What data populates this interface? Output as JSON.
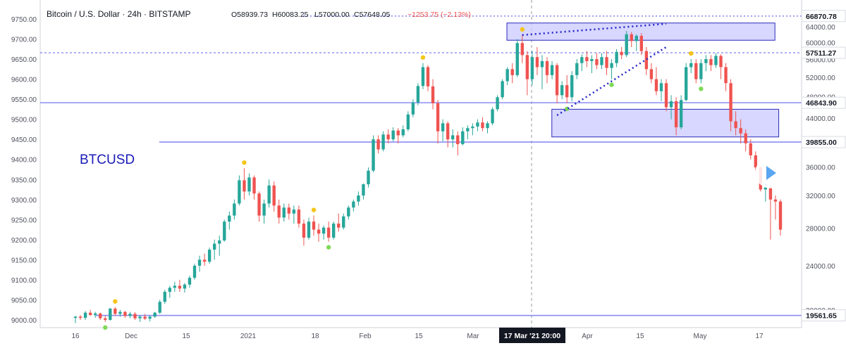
{
  "header": {
    "title": "Bitcoin / U.S. Dollar · 24h · BITSTAMP",
    "open": "O58939.73",
    "high": "H60083.25",
    "low": "L57000.00",
    "close": "C57648.05",
    "change": "−1253.75 (−2.13%)",
    "change_color": "#ef5350"
  },
  "symbol_label": "BTCUSD",
  "crosshair_label": "17 Mar '21  20:00",
  "colors": {
    "up": "#26a69a",
    "down": "#ef5350",
    "accent_line": "#8c8cf2",
    "zone_fill": "#c9c9ff",
    "zone_stroke": "#2a2aba",
    "dotted_trend": "#2323c8",
    "dot_high": "#f5c518",
    "dot_low": "#7ed957",
    "play_button": "#5aa6f0"
  },
  "chart_data": {
    "type": "candlestick",
    "left_axis": {
      "ticks": [
        "9750.00",
        "9700.00",
        "9650.00",
        "9600.00",
        "9550.00",
        "9500.00",
        "9450.00",
        "9400.00",
        "9350.00",
        "9300.00",
        "9250.00",
        "9200.00",
        "9150.00",
        "9100.00",
        "9050.00",
        "9000.00"
      ],
      "range": [
        8990,
        9765
      ]
    },
    "right_axis": {
      "ticks": [
        "64000.00",
        "60000.00",
        "56000.00",
        "52000.00",
        "48000.00",
        "44000.00",
        "40000.00",
        "36000.00",
        "32000.00",
        "28000.00",
        "24000.00",
        "20000.00"
      ],
      "scale": "log"
    },
    "x_ticks": [
      "16",
      "Dec",
      "15",
      "2021",
      "18",
      "Feb",
      "15",
      "Mar",
      "Apr",
      "15",
      "May",
      "17"
    ],
    "price_tags": [
      {
        "value": "66870.78",
        "style": "dotted"
      },
      {
        "value": "57511.27",
        "style": "dashed"
      },
      {
        "value": "46843.90",
        "style": "solid"
      },
      {
        "value": "39855.00",
        "style": "solid"
      },
      {
        "value": "19561.65",
        "style": "solid"
      }
    ],
    "candles_left_scale": [
      [
        9005,
        9010,
        8992,
        9008
      ],
      [
        9008,
        9012,
        9000,
        9005
      ],
      [
        9005,
        9022,
        9000,
        9018
      ],
      [
        9018,
        9025,
        9010,
        9012
      ],
      [
        9012,
        9020,
        9005,
        9016
      ],
      [
        9016,
        9018,
        9000,
        9004
      ],
      [
        9004,
        9010,
        8995,
        9000
      ],
      [
        9000,
        9030,
        8998,
        9028
      ],
      [
        9028,
        9032,
        9010,
        9015
      ],
      [
        9015,
        9025,
        9008,
        9020
      ],
      [
        9020,
        9022,
        9005,
        9010
      ],
      [
        9010,
        9020,
        9004,
        9015
      ],
      [
        9015,
        9019,
        9000,
        9004
      ],
      [
        9004,
        9012,
        8995,
        9008
      ],
      [
        9008,
        9015,
        9000,
        9003
      ],
      [
        9003,
        9010,
        8996,
        9008
      ],
      [
        9008,
        9020,
        9005,
        9018
      ],
      [
        9018,
        9050,
        9015,
        9045
      ],
      [
        9045,
        9075,
        9040,
        9070
      ],
      [
        9070,
        9085,
        9055,
        9080
      ],
      [
        9080,
        9095,
        9070,
        9085
      ],
      [
        9085,
        9100,
        9070,
        9078
      ],
      [
        9078,
        9092,
        9068,
        9088
      ],
      [
        9088,
        9110,
        9080,
        9105
      ],
      [
        9105,
        9140,
        9100,
        9135
      ],
      [
        9135,
        9160,
        9120,
        9150
      ],
      [
        9150,
        9165,
        9135,
        9145
      ],
      [
        9145,
        9180,
        9140,
        9175
      ],
      [
        9175,
        9200,
        9150,
        9190
      ],
      [
        9190,
        9210,
        9160,
        9198
      ],
      [
        9198,
        9250,
        9195,
        9245
      ],
      [
        9245,
        9270,
        9225,
        9260
      ],
      [
        9260,
        9300,
        9250,
        9290
      ],
      [
        9290,
        9360,
        9285,
        9348
      ],
      [
        9348,
        9378,
        9300,
        9320
      ],
      [
        9320,
        9365,
        9310,
        9355
      ],
      [
        9355,
        9360,
        9300,
        9315
      ],
      [
        9315,
        9320,
        9245,
        9260
      ],
      [
        9260,
        9300,
        9240,
        9290
      ],
      [
        9290,
        9350,
        9280,
        9335
      ],
      [
        9335,
        9345,
        9270,
        9285
      ],
      [
        9285,
        9300,
        9240,
        9255
      ],
      [
        9255,
        9290,
        9245,
        9280
      ],
      [
        9280,
        9290,
        9250,
        9265
      ],
      [
        9265,
        9285,
        9240,
        9275
      ],
      [
        9275,
        9285,
        9230,
        9240
      ],
      [
        9240,
        9250,
        9185,
        9205
      ],
      [
        9205,
        9255,
        9200,
        9245
      ],
      [
        9245,
        9260,
        9210,
        9225
      ],
      [
        9225,
        9240,
        9195,
        9215
      ],
      [
        9215,
        9235,
        9200,
        9230
      ],
      [
        9230,
        9245,
        9195,
        9205
      ],
      [
        9205,
        9245,
        9200,
        9240
      ],
      [
        9240,
        9265,
        9220,
        9230
      ],
      [
        9230,
        9265,
        9225,
        9258
      ],
      [
        9258,
        9285,
        9250,
        9280
      ],
      [
        9280,
        9300,
        9270,
        9295
      ],
      [
        9295,
        9320,
        9285,
        9310
      ],
      [
        9310,
        9340,
        9300,
        9338
      ],
      [
        9338,
        9380,
        9330,
        9372
      ],
      [
        9372,
        9460,
        9368,
        9450
      ],
      [
        9450,
        9460,
        9415,
        9425
      ],
      [
        9425,
        9470,
        9420,
        9462
      ],
      [
        9462,
        9475,
        9440,
        9450
      ],
      [
        9450,
        9480,
        9445,
        9472
      ],
      [
        9472,
        9478,
        9440,
        9460
      ],
      [
        9460,
        9485,
        9455,
        9475
      ],
      [
        9475,
        9520,
        9470,
        9512
      ],
      [
        9512,
        9550,
        9505,
        9542
      ],
      [
        9542,
        9590,
        9535,
        9583
      ],
      [
        9583,
        9640,
        9575,
        9630
      ],
      [
        9630,
        9635,
        9570,
        9582
      ],
      [
        9582,
        9600,
        9525,
        9540
      ],
      [
        9540,
        9548,
        9440,
        9470
      ],
      [
        9470,
        9500,
        9445,
        9490
      ],
      [
        9490,
        9495,
        9430,
        9450
      ],
      [
        9450,
        9475,
        9430,
        9460
      ],
      [
        9460,
        9470,
        9410,
        9438
      ],
      [
        9438,
        9480,
        9435,
        9470
      ],
      [
        9470,
        9485,
        9450,
        9478
      ],
      [
        9478,
        9490,
        9460,
        9482
      ],
      [
        9482,
        9500,
        9470,
        9492
      ],
      [
        9492,
        9505,
        9470,
        9478
      ],
      [
        9478,
        9495,
        9465,
        9490
      ],
      [
        9490,
        9530,
        9485,
        9525
      ],
      [
        9525,
        9560,
        9520,
        9555
      ],
      [
        9555,
        9600,
        9550,
        9595
      ],
      [
        9595,
        9630,
        9585,
        9625
      ],
      [
        9625,
        9640,
        9590,
        9610
      ],
      [
        9610,
        9700,
        9605,
        9690
      ],
      [
        9690,
        9710,
        9640,
        9660
      ],
      [
        9660,
        9670,
        9560,
        9600
      ],
      [
        9600,
        9670,
        9585,
        9655
      ],
      [
        9655,
        9680,
        9610,
        9630
      ],
      [
        9630,
        9660,
        9575,
        9645
      ],
      [
        9645,
        9655,
        9590,
        9610
      ],
      [
        9610,
        9645,
        9600,
        9635
      ],
      [
        9635,
        9640,
        9540,
        9560
      ],
      [
        9560,
        9595,
        9550,
        9585
      ],
      [
        9585,
        9610,
        9540,
        9555
      ],
      [
        9555,
        9620,
        9545,
        9610
      ],
      [
        9610,
        9650,
        9600,
        9640
      ],
      [
        9640,
        9662,
        9620,
        9655
      ],
      [
        9655,
        9670,
        9630,
        9645
      ],
      [
        9645,
        9660,
        9615,
        9650
      ],
      [
        9650,
        9665,
        9625,
        9635
      ],
      [
        9635,
        9665,
        9625,
        9655
      ],
      [
        9655,
        9670,
        9610,
        9628
      ],
      [
        9628,
        9650,
        9600,
        9640
      ],
      [
        9640,
        9675,
        9630,
        9668
      ],
      [
        9668,
        9680,
        9650,
        9660
      ],
      [
        9660,
        9720,
        9655,
        9712
      ],
      [
        9712,
        9718,
        9680,
        9695
      ],
      [
        9695,
        9712,
        9670,
        9708
      ],
      [
        9708,
        9715,
        9660,
        9670
      ],
      [
        9670,
        9680,
        9610,
        9625
      ],
      [
        9625,
        9640,
        9590,
        9600
      ],
      [
        9600,
        9630,
        9560,
        9570
      ],
      [
        9570,
        9600,
        9545,
        9590
      ],
      [
        9590,
        9600,
        9520,
        9530
      ],
      [
        9530,
        9560,
        9500,
        9545
      ],
      [
        9545,
        9555,
        9460,
        9480
      ],
      [
        9480,
        9560,
        9475,
        9548
      ],
      [
        9548,
        9640,
        9545,
        9630
      ],
      [
        9630,
        9650,
        9615,
        9640
      ],
      [
        9640,
        9650,
        9590,
        9600
      ],
      [
        9600,
        9650,
        9590,
        9640
      ],
      [
        9640,
        9660,
        9620,
        9650
      ],
      [
        9650,
        9660,
        9620,
        9635
      ],
      [
        9635,
        9665,
        9628,
        9658
      ],
      [
        9658,
        9662,
        9600,
        9630
      ],
      [
        9630,
        9640,
        9570,
        9590
      ],
      [
        9590,
        9600,
        9470,
        9495
      ],
      [
        9495,
        9520,
        9460,
        9478
      ],
      [
        9478,
        9500,
        9440,
        9465
      ],
      [
        9465,
        9475,
        9420,
        9440
      ],
      [
        9440,
        9450,
        9400,
        9410
      ],
      [
        9410,
        9420,
        9370,
        9380
      ],
      [
        9380,
        9382,
        9320,
        9325
      ],
      [
        9325,
        9340,
        9295,
        9330
      ],
      [
        9330,
        9335,
        9200,
        9300
      ],
      [
        9300,
        9310,
        9250,
        9295
      ],
      [
        9295,
        9300,
        9210,
        9225
      ]
    ],
    "zones": [
      {
        "name": "upper-zone",
        "x_from": 0.613,
        "x_to": 0.965,
        "y_top": 9740,
        "y_bottom": 9697
      },
      {
        "name": "lower-zone",
        "x_from": 0.672,
        "x_to": 0.97,
        "y_top": 9525,
        "y_bottom": 9456
      }
    ]
  }
}
